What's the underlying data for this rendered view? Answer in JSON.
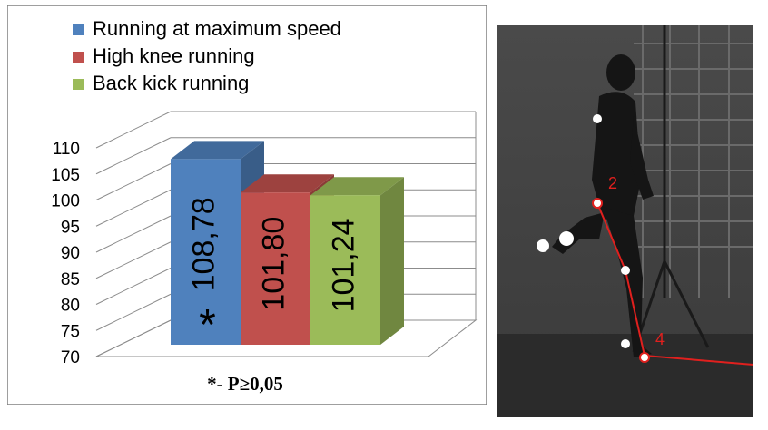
{
  "chart_data": {
    "type": "bar",
    "categories": [
      "Running at maximum speed",
      "High knee running",
      "Back kick running"
    ],
    "values": [
      108.78,
      101.8,
      101.24
    ],
    "value_labels": [
      "108,78",
      "101,80",
      "101,24"
    ],
    "ylim": [
      70,
      110
    ],
    "ytick_step": 5,
    "ytick_labels": [
      "70",
      "75",
      "80",
      "85",
      "90",
      "95",
      "100",
      "105",
      "110"
    ],
    "colors": [
      "#4F81BD",
      "#C0504D",
      "#9BBB59"
    ],
    "legend_position": "top",
    "significance_marker": "*",
    "footnote": "*- P≥0,05"
  },
  "photo": {
    "marker_labels": [
      "2",
      "4"
    ]
  }
}
